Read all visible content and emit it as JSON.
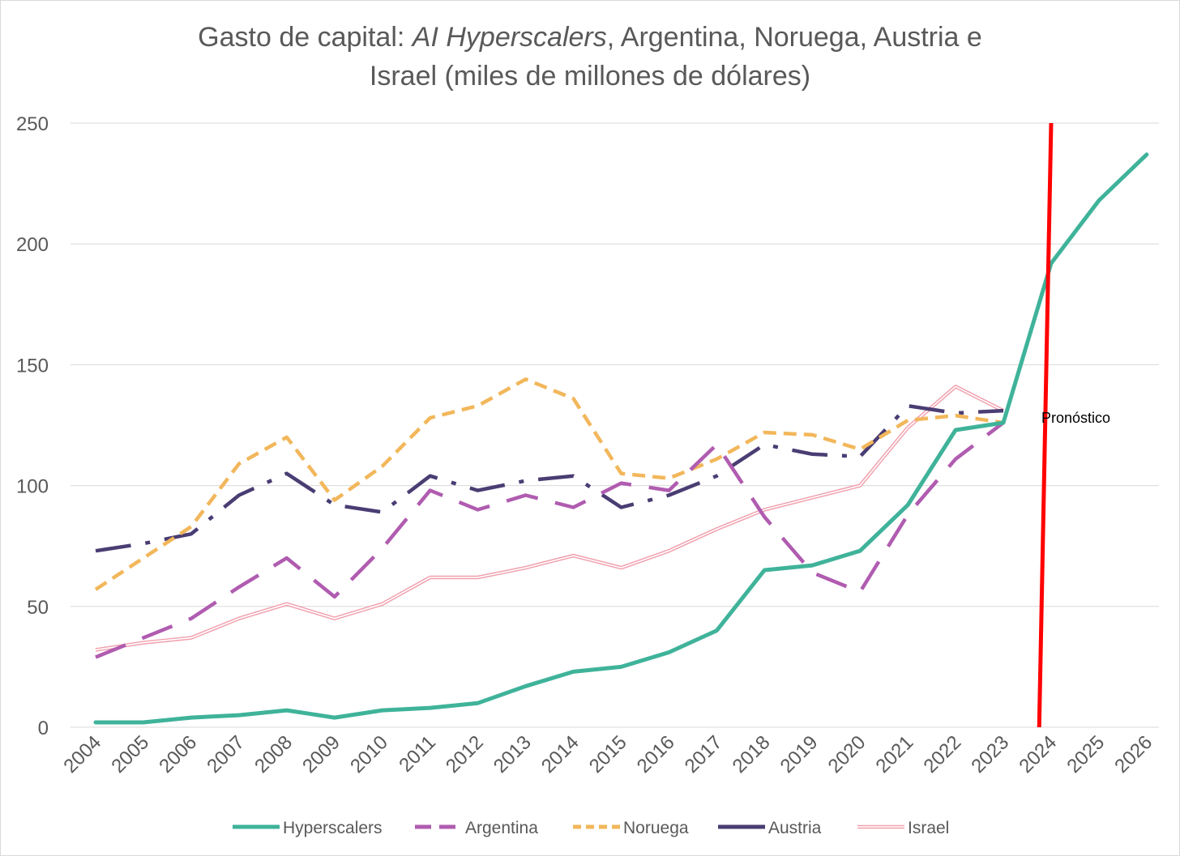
{
  "title": {
    "prefix": "Gasto de capital: ",
    "italic": "AI Hyperscalers",
    "line1_rest": ", Argentina, Noruega, Austria e",
    "line2": "Israel (miles de millones de dólares)"
  },
  "chart_data": {
    "type": "line",
    "categories": [
      "2004",
      "2005",
      "2006",
      "2007",
      "2008",
      "2009",
      "2010",
      "2011",
      "2012",
      "2013",
      "2014",
      "2015",
      "2016",
      "2017",
      "2018",
      "2019",
      "2020",
      "2021",
      "2022",
      "2023",
      "2024",
      "2025",
      "2026"
    ],
    "ylim": [
      0,
      250
    ],
    "yticks": [
      0,
      50,
      100,
      150,
      200,
      250
    ],
    "grid": true,
    "legend": "bottom",
    "forecast_line": {
      "label": "Pronóstico",
      "color": "#ff0000",
      "from_index": 19.75,
      "to_index": 20.0
    },
    "series": [
      {
        "name": "Hyperscalers",
        "color": "#3fb39a",
        "style": "solid",
        "values": [
          2,
          2,
          4,
          5,
          7,
          4,
          7,
          8,
          10,
          17,
          23,
          25,
          31,
          40,
          65,
          67,
          73,
          92,
          123,
          126,
          192,
          218,
          237
        ]
      },
      {
        "name": "Argentina",
        "color": "#b05cb0",
        "style": "longdash",
        "values": [
          29,
          37,
          45,
          58,
          70,
          54,
          74,
          98,
          90,
          96,
          91,
          101,
          98,
          117,
          87,
          64,
          56,
          88,
          111,
          126,
          null,
          null,
          null
        ]
      },
      {
        "name": "Noruega",
        "color": "#f2b75b",
        "style": "dash",
        "values": [
          57,
          70,
          83,
          109,
          120,
          94,
          108,
          128,
          133,
          144,
          136,
          105,
          103,
          111,
          122,
          121,
          115,
          127,
          129,
          126,
          null,
          null,
          null
        ]
      },
      {
        "name": "Austria",
        "color": "#4a3d73",
        "style": "dashdot",
        "values": [
          73,
          76,
          80,
          96,
          105,
          92,
          89,
          104,
          98,
          102,
          104,
          91,
          96,
          104,
          117,
          113,
          112,
          133,
          130,
          131,
          null,
          null,
          null
        ]
      },
      {
        "name": "Israel",
        "color": "#f0a0ad",
        "style": "double",
        "values": [
          32,
          35,
          37,
          45,
          51,
          45,
          51,
          62,
          62,
          66,
          71,
          66,
          73,
          82,
          90,
          95,
          100,
          124,
          141,
          131,
          null,
          null,
          null
        ]
      }
    ]
  }
}
